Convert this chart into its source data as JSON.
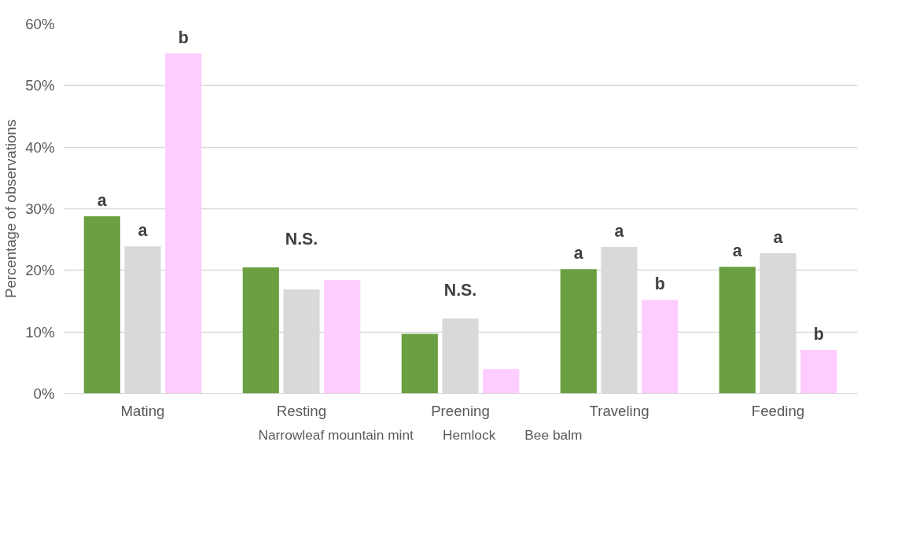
{
  "chart_data": {
    "type": "bar",
    "ylabel": "Percentage of observations",
    "categories": [
      "Mating",
      "Resting",
      "Preening",
      "Traveling",
      "Feeding"
    ],
    "series": [
      {
        "name": "Narrowleaf mountain mint",
        "color": "#6a9f42",
        "values": [
          28.8,
          20.5,
          9.7,
          20.2,
          20.6
        ]
      },
      {
        "name": "Hemlock",
        "color": "#d9d9d9",
        "values": [
          23.9,
          16.9,
          12.2,
          23.8,
          22.8
        ]
      },
      {
        "name": "Bee balm",
        "color": "#ffccff",
        "values": [
          55.2,
          18.4,
          4.0,
          15.2,
          7.1
        ]
      }
    ],
    "ylim": [
      0,
      60
    ],
    "yticks": [
      {
        "value": 0,
        "label": "0%"
      },
      {
        "value": 10,
        "label": "10%"
      },
      {
        "value": 20,
        "label": "20%"
      },
      {
        "value": 30,
        "label": "30%"
      },
      {
        "value": 40,
        "label": "40%"
      },
      {
        "value": 50,
        "label": "50%"
      },
      {
        "value": 60,
        "label": "60%"
      }
    ],
    "grid": "y",
    "legend": "bottom",
    "annotations": [
      "a",
      "a",
      "b",
      "N.S.",
      "N.S.",
      "a",
      "a",
      "b",
      "a",
      "a",
      "b"
    ]
  }
}
